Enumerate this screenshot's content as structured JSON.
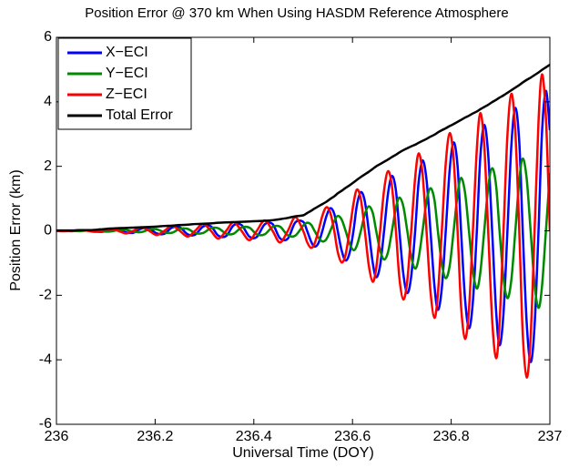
{
  "chart_data": {
    "type": "line",
    "title": "Position Error @ 370 km When Using HASDM Reference Atmosphere",
    "xlabel": "Universal Time (DOY)",
    "ylabel": "Position Error (km)",
    "xlim": [
      236,
      237
    ],
    "ylim": [
      -6,
      6
    ],
    "xticks": [
      236,
      236.2,
      236.4,
      236.6,
      236.8,
      237
    ],
    "yticks": [
      -6,
      -4,
      -2,
      0,
      2,
      4,
      6
    ],
    "legend": "upper left",
    "x": [
      236,
      236.016,
      236.031,
      236.047,
      236.063,
      236.078,
      236.094,
      236.109,
      236.125,
      236.141,
      236.156,
      236.172,
      236.188,
      236.203,
      236.219,
      236.234,
      236.25,
      236.266,
      236.281,
      236.297,
      236.313,
      236.328,
      236.344,
      236.359,
      236.375,
      236.391,
      236.406,
      236.422,
      236.438,
      236.453,
      236.469,
      236.484,
      236.5,
      236.508,
      236.516,
      236.523,
      236.531,
      236.539,
      236.547,
      236.555,
      236.563,
      236.57,
      236.578,
      236.586,
      236.594,
      236.602,
      236.609,
      236.617,
      236.625,
      236.633,
      236.641,
      236.648,
      236.656,
      236.664,
      236.672,
      236.68,
      236.688,
      236.695,
      236.703,
      236.711,
      236.719,
      236.727,
      236.734,
      236.742,
      236.75,
      236.758,
      236.766,
      236.773,
      236.781,
      236.789,
      236.797,
      236.805,
      236.813,
      236.82,
      236.828,
      236.836,
      236.844,
      236.852,
      236.859,
      236.867,
      236.875,
      236.883,
      236.891,
      236.898,
      236.906,
      236.914,
      236.922,
      236.93,
      236.938,
      236.945,
      236.953,
      236.961,
      236.969,
      236.977,
      236.984,
      236.992,
      237
    ],
    "series": [
      {
        "name": "X−ECI",
        "color": "#0000ff",
        "values": [
          0,
          0,
          -0.01,
          0.01,
          0.01,
          -0.02,
          -0.03,
          0.04,
          0.04,
          -0.05,
          -0.06,
          0.07,
          0.08,
          -0.08,
          -0.09,
          0.1,
          0.11,
          -0.11,
          -0.12,
          0.13,
          0.14,
          -0.15,
          -0.16,
          0.17,
          0.18,
          -0.18,
          -0.19,
          0.2,
          0.21,
          -0.23,
          -0.24,
          0.26,
          0.28,
          0,
          -0.33,
          -0.49,
          -0.38,
          0,
          0.45,
          0.7,
          0.53,
          0,
          -0.61,
          -0.92,
          -0.69,
          0,
          0.8,
          1.2,
          0.91,
          0,
          -0.99,
          -1.44,
          -1.07,
          0,
          1.16,
          1.7,
          1.25,
          0,
          -1.33,
          -1.93,
          -1.41,
          0,
          1.5,
          2.18,
          1.59,
          0,
          -1.69,
          -2.45,
          -1.78,
          0,
          1.9,
          2.74,
          2.0,
          0,
          -2.09,
          -3.02,
          -2.19,
          0,
          2.28,
          3.28,
          2.37,
          0,
          -2.47,
          -3.55,
          -2.56,
          0,
          2.66,
          3.81,
          2.75,
          0,
          -2.84,
          -4.07,
          -2.94,
          0,
          3.03,
          4.34,
          3.12
        ]
      },
      {
        "name": "Y−ECI",
        "color": "#008a00",
        "values": [
          0,
          0,
          0,
          -0.01,
          0.01,
          0.01,
          -0.02,
          -0.02,
          0.02,
          0.03,
          -0.03,
          -0.04,
          0.04,
          0.05,
          -0.05,
          -0.06,
          0.06,
          0.06,
          -0.07,
          -0.07,
          0.08,
          0.08,
          -0.09,
          -0.09,
          0.1,
          0.1,
          -0.11,
          -0.11,
          0.12,
          0.13,
          -0.14,
          -0.15,
          0.16,
          0.25,
          0.19,
          0,
          -0.21,
          -0.33,
          -0.26,
          0,
          0.3,
          0.46,
          0.35,
          0,
          -0.39,
          -0.6,
          -0.45,
          0,
          0.52,
          0.76,
          0.56,
          0,
          -0.6,
          -0.89,
          -0.66,
          0,
          0.71,
          1.03,
          0.76,
          0,
          -0.8,
          -1.17,
          -0.85,
          0,
          0.91,
          1.32,
          0.96,
          0,
          -1.02,
          -1.47,
          -1.08,
          0,
          1.14,
          1.64,
          1.19,
          0,
          -1.24,
          -1.79,
          -1.3,
          0,
          1.35,
          1.94,
          1.41,
          0,
          -1.46,
          -2.09,
          -1.51,
          0,
          1.56,
          2.24,
          1.62,
          0,
          -1.67,
          -2.39,
          -1.73,
          0,
          1.78
        ]
      },
      {
        "name": "Z−ECI",
        "color": "#ff0000",
        "values": [
          0,
          -0.01,
          0,
          0.02,
          0,
          -0.03,
          0,
          0.06,
          0,
          -0.08,
          0,
          0.11,
          0,
          -0.13,
          0,
          0.16,
          0,
          -0.18,
          0,
          0.21,
          0,
          -0.24,
          0,
          0.27,
          0,
          -0.29,
          0,
          0.32,
          0,
          -0.36,
          0,
          0.42,
          0,
          -0.35,
          -0.53,
          -0.4,
          0,
          0.47,
          0.73,
          0.56,
          0,
          -0.65,
          -0.98,
          -0.74,
          0,
          0.84,
          1.28,
          0.97,
          0,
          -1.07,
          -1.58,
          -1.16,
          0,
          1.26,
          1.85,
          1.37,
          0,
          -1.46,
          -2.13,
          -1.55,
          0,
          1.65,
          2.4,
          1.76,
          0,
          -1.87,
          -2.7,
          -1.97,
          0,
          2.09,
          3.03,
          2.21,
          0,
          -2.33,
          -3.35,
          -2.44,
          0,
          2.54,
          3.65,
          2.65,
          0,
          -2.75,
          -3.95,
          -2.86,
          0,
          2.97,
          4.25,
          3.07,
          0,
          -3.18,
          -4.55,
          -3.29,
          0,
          3.39,
          4.85,
          3.5,
          0
        ]
      },
      {
        "name": "Total Error",
        "color": "#000000",
        "values": [
          0.01,
          0.01,
          0.01,
          0.02,
          0.02,
          0.03,
          0.05,
          0.07,
          0.08,
          0.09,
          0.1,
          0.11,
          0.12,
          0.13,
          0.15,
          0.16,
          0.18,
          0.19,
          0.21,
          0.22,
          0.23,
          0.25,
          0.26,
          0.27,
          0.28,
          0.29,
          0.3,
          0.31,
          0.33,
          0.36,
          0.4,
          0.45,
          0.48,
          0.55,
          0.62,
          0.69,
          0.76,
          0.83,
          0.9,
          0.99,
          1.07,
          1.16,
          1.24,
          1.33,
          1.41,
          1.5,
          1.58,
          1.67,
          1.75,
          1.83,
          1.92,
          2,
          2.07,
          2.14,
          2.21,
          2.29,
          2.36,
          2.43,
          2.5,
          2.56,
          2.62,
          2.67,
          2.73,
          2.79,
          2.85,
          2.92,
          2.98,
          3.05,
          3.12,
          3.18,
          3.25,
          3.31,
          3.38,
          3.44,
          3.51,
          3.57,
          3.64,
          3.7,
          3.77,
          3.84,
          3.91,
          3.99,
          4.06,
          4.13,
          4.2,
          4.28,
          4.36,
          4.44,
          4.52,
          4.6,
          4.68,
          4.75,
          4.83,
          4.91,
          4.99,
          5.07,
          5.15
        ]
      }
    ]
  }
}
